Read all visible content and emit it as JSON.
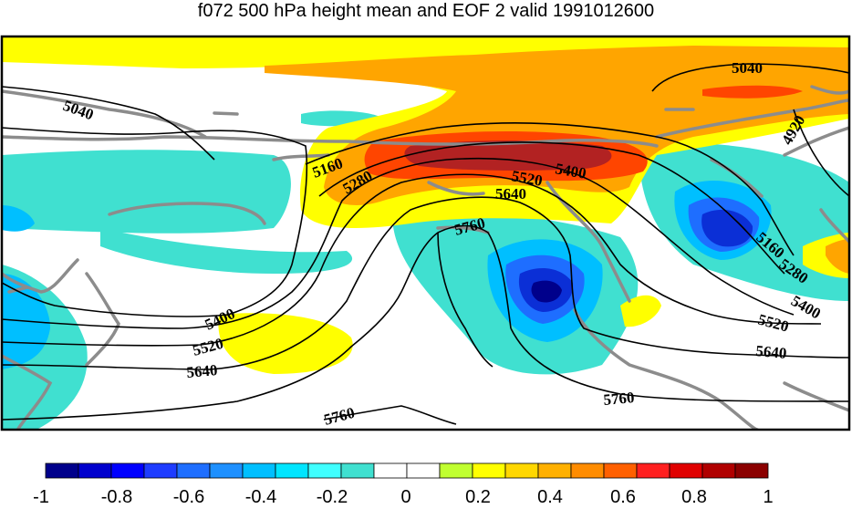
{
  "title": "f072 500 hPa height mean and EOF 2 valid 1991012600",
  "colors": {
    "neg_max": "#00008b",
    "neg_strong": "#0b2fd6",
    "neg_mid": "#1e90ff",
    "neg_weak": "#00bfff",
    "neg_light": "#3ff0d0",
    "pos_light": "#ffff00",
    "pos_mid": "#ffa500",
    "pos_strong": "#ff4500",
    "pos_max": "#b22222",
    "coast": "#8c8c8c",
    "contour": "#000000"
  },
  "contour_labels": [
    {
      "id": "5040-w",
      "text": "5040",
      "rot": 20
    },
    {
      "id": "5040-e",
      "text": "5040",
      "rot": 0
    },
    {
      "id": "4920",
      "text": "4920",
      "rot": -60
    },
    {
      "id": "5160-w",
      "text": "5160",
      "rot": -20
    },
    {
      "id": "5280-w",
      "text": "5280",
      "rot": -30
    },
    {
      "id": "5520-c",
      "text": "5520",
      "rot": 10
    },
    {
      "id": "5400-c",
      "text": "5400",
      "rot": 10
    },
    {
      "id": "5640-c",
      "text": "5640",
      "rot": 0
    },
    {
      "id": "5760-c",
      "text": "5760",
      "rot": -15
    },
    {
      "id": "5160-e",
      "text": "5160",
      "rot": 40
    },
    {
      "id": "5280-e",
      "text": "5280",
      "rot": 35
    },
    {
      "id": "5400-e",
      "text": "5400",
      "rot": 30
    },
    {
      "id": "5520-e",
      "text": "5520",
      "rot": 15
    },
    {
      "id": "5640-e",
      "text": "5640",
      "rot": 5
    },
    {
      "id": "5400-w",
      "text": "5400",
      "rot": -25
    },
    {
      "id": "5520-w",
      "text": "5520",
      "rot": -15
    },
    {
      "id": "5640-w",
      "text": "5640",
      "rot": -5
    },
    {
      "id": "5760-sw",
      "text": "5760",
      "rot": -15
    },
    {
      "id": "5760-se",
      "text": "5760",
      "rot": -5
    }
  ],
  "colorbar": {
    "colors": [
      "#00008b",
      "#0000cd",
      "#0000ff",
      "#1e3cff",
      "#1e6eff",
      "#1e90ff",
      "#00bfff",
      "#00e5ff",
      "#40ffff",
      "#40e0d0",
      "#ffffff",
      "#ffffff",
      "#c0ff30",
      "#ffff00",
      "#ffd700",
      "#ffb000",
      "#ff8c00",
      "#ff6000",
      "#ff2020",
      "#e00000",
      "#b00000",
      "#8b0000"
    ],
    "tick_labels": [
      "-1",
      "-0.8",
      "-0.6",
      "-0.4",
      "-0.2",
      "0",
      "0.2",
      "0.4",
      "0.6",
      "0.8",
      "1"
    ]
  }
}
